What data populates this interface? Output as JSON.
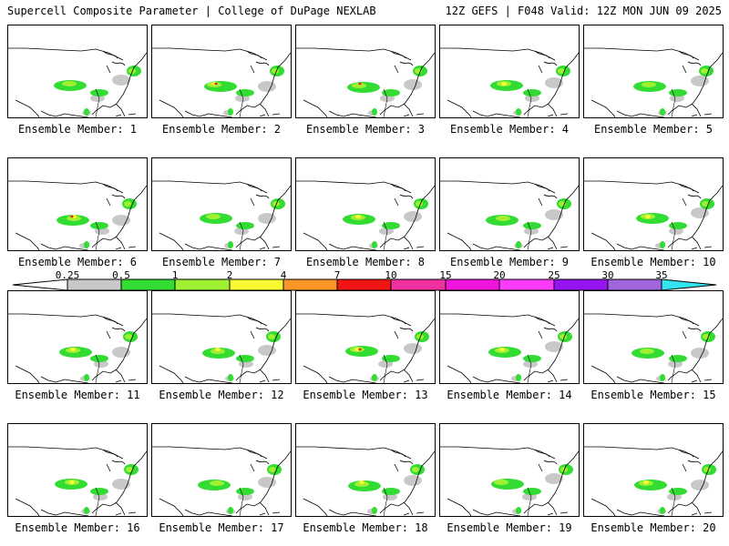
{
  "header": {
    "left": "Supercell Composite Parameter | College of DuPage NEXLAB",
    "right": "12Z GEFS | F048 Valid: 12Z MON JUN 09 2025"
  },
  "panels": [
    "Ensemble Member: 1",
    "Ensemble Member: 2",
    "Ensemble Member: 3",
    "Ensemble Member: 4",
    "Ensemble Member: 5",
    "Ensemble Member: 6",
    "Ensemble Member: 7",
    "Ensemble Member: 8",
    "Ensemble Member: 9",
    "Ensemble Member: 10",
    "Ensemble Member: 11",
    "Ensemble Member: 12",
    "Ensemble Member: 13",
    "Ensemble Member: 14",
    "Ensemble Member: 15",
    "Ensemble Member: 16",
    "Ensemble Member: 17",
    "Ensemble Member: 18",
    "Ensemble Member: 19",
    "Ensemble Member: 20"
  ],
  "colorbar": {
    "ticks": [
      "0.25",
      "0.5",
      "1",
      "2",
      "4",
      "7",
      "10",
      "15",
      "20",
      "25",
      "30",
      "35"
    ],
    "colors": [
      "#c8c8c8",
      "#32dc32",
      "#a0f032",
      "#fafa32",
      "#fa9628",
      "#f01414",
      "#f032a0",
      "#f014dc",
      "#fa3cfa",
      "#9614f0",
      "#a064dc",
      "#32e6f0"
    ]
  },
  "map_colors": {
    "light": "#c8c8c8",
    "green": "#32dc32",
    "lightgreen": "#a0f032",
    "yellow": "#fafa32",
    "red": "#f01414"
  }
}
